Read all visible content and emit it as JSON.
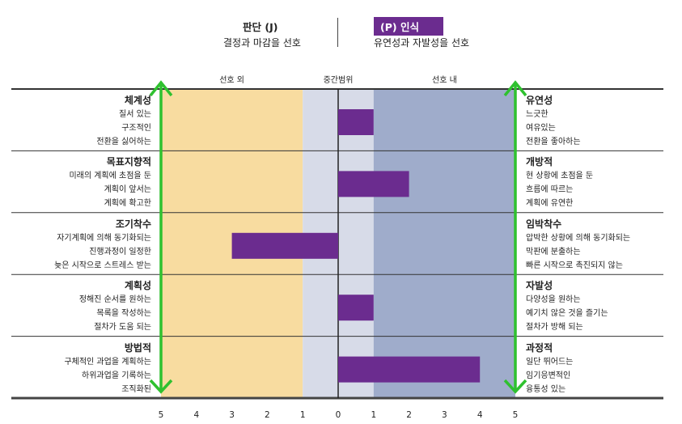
{
  "header": {
    "left_title": "판단 (J)",
    "left_sub": "결정과 마감을 선호",
    "right_title": "(P) 인식",
    "right_sub": "유연성과 자발성을 선호"
  },
  "chart_data": {
    "type": "bar",
    "orientation": "horizontal",
    "zones": [
      "선호 외",
      "중간범위",
      "선호 내"
    ],
    "xlim": [
      -5,
      5
    ],
    "tick_labels": [
      "5",
      "4",
      "3",
      "2",
      "1",
      "0",
      "1",
      "2",
      "3",
      "4",
      "5"
    ],
    "bar_color": "#6b2c8f",
    "zone_colors": {
      "outside": "#f8dca0",
      "middle": "#d7dbe8",
      "inside": "#9faccb"
    },
    "rows": [
      {
        "left_title": "체계성",
        "left_lines": [
          "질서 있는",
          "구조적인",
          "전환을 싫어하는"
        ],
        "right_title": "유연성",
        "right_lines": [
          "느긋한",
          "여유있는",
          "전환을 좋아하는"
        ],
        "value": 1
      },
      {
        "left_title": "목표지향적",
        "left_lines": [
          "미래의 계획에 초점을 둔",
          "계획이 앞서는",
          "계획에 확고한"
        ],
        "right_title": "개방적",
        "right_lines": [
          "현 상황에 초점을 둔",
          "흐름에 따르는",
          "계획에 유연한"
        ],
        "value": 2
      },
      {
        "left_title": "조기착수",
        "left_lines": [
          "자기계획에 의해 동기화되는",
          "진행과정이 일정한",
          "늦은 시작으로 스트레스 받는"
        ],
        "right_title": "임박착수",
        "right_lines": [
          "압박한 상황에 의해 동기화되는",
          "막판에 분출하는",
          "빠른 시작으로 촉진되지 않는"
        ],
        "value": -3
      },
      {
        "left_title": "계획성",
        "left_lines": [
          "정해진 순서를 원하는",
          "목록을 작성하는",
          "절차가 도움 되는"
        ],
        "right_title": "자발성",
        "right_lines": [
          "다양성을 원하는",
          "예기치 않은 것을 즐기는",
          "절차가 방해 되는"
        ],
        "value": 1
      },
      {
        "left_title": "방법적",
        "left_lines": [
          "구체적인 과업을 계획하는",
          "하위과업을 기록하는",
          "조직화된"
        ],
        "right_title": "과정적",
        "right_lines": [
          "일단 뛰어드는",
          "임기응변적인",
          "융통성 있는"
        ],
        "value": 4
      }
    ]
  }
}
